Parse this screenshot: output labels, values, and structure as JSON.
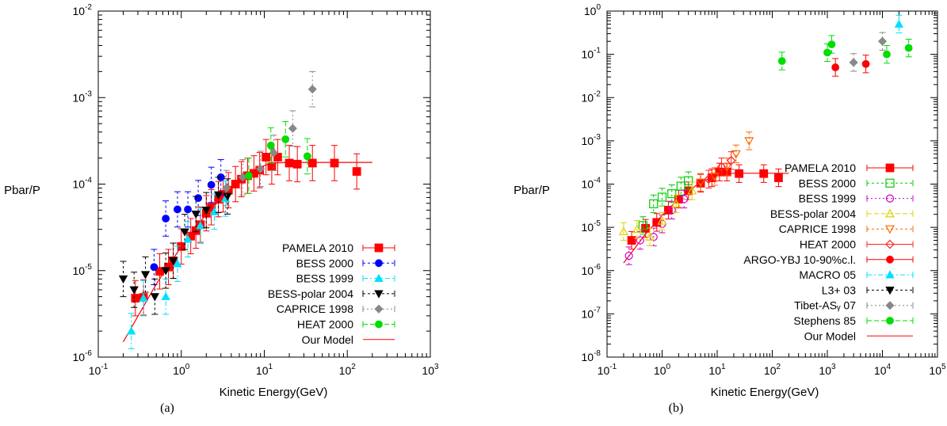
{
  "chart_data": [
    {
      "type": "scatter",
      "panel": "a",
      "caption": "(a)",
      "xlabel": "Kinetic Energy(GeV)",
      "ylabel": "Pbar/P",
      "xscale": "log",
      "yscale": "log",
      "xlim": [
        0.1,
        1000
      ],
      "ylim": [
        1e-06,
        0.01
      ],
      "x_ticks": [
        {
          "v": 0.1,
          "m": "10",
          "e": "-1"
        },
        {
          "v": 1,
          "m": "10",
          "e": "0"
        },
        {
          "v": 10,
          "m": "10",
          "e": "1"
        },
        {
          "v": 100,
          "m": "10",
          "e": "2"
        },
        {
          "v": 1000,
          "m": "10",
          "e": "3"
        }
      ],
      "y_ticks": [
        {
          "v": 1e-06,
          "m": "10",
          "e": "-6"
        },
        {
          "v": 1e-05,
          "m": "10",
          "e": "-5"
        },
        {
          "v": 0.0001,
          "m": "10",
          "e": "-4"
        },
        {
          "v": 0.001,
          "m": "10",
          "e": "-3"
        },
        {
          "v": 0.01,
          "m": "10",
          "e": "-2"
        }
      ],
      "grid": false,
      "legend_position": "bottom-right",
      "series": [
        {
          "name": "PAMELA 2010",
          "color": "#ff0000",
          "marker": "square",
          "dash": "",
          "points": [
            [
              0.28,
              4.8e-06
            ],
            [
              0.35,
              4.9e-06
            ],
            [
              0.55,
              9.8e-06
            ],
            [
              0.7,
              1.1e-05
            ],
            [
              0.8,
              1.3e-05
            ],
            [
              1.0,
              1.9e-05
            ],
            [
              1.3,
              2.5e-05
            ],
            [
              1.5,
              2.9e-05
            ],
            [
              1.7,
              3.4e-05
            ],
            [
              2.0,
              4.6e-05
            ],
            [
              2.3,
              5.4e-05
            ],
            [
              2.8,
              6.7e-05
            ],
            [
              3.2,
              7.6e-05
            ],
            [
              3.7,
              8.5e-05
            ],
            [
              4.5,
              0.0001
            ],
            [
              5.3,
              0.000114
            ],
            [
              6.3,
              0.000125
            ],
            [
              7.5,
              0.000133
            ],
            [
              8.8,
              0.000145
            ],
            [
              10.5,
              0.000205
            ],
            [
              12.3,
              0.00016
            ],
            [
              14.5,
              0.000205
            ],
            [
              20,
              0.000175
            ],
            [
              25,
              0.00017
            ],
            [
              38,
              0.000175
            ],
            [
              70,
              0.000175
            ],
            [
              130,
              0.00014
            ]
          ]
        },
        {
          "name": "BESS 2000",
          "color": "#0000ff",
          "marker": "circle",
          "dash": "3,3",
          "points": [
            [
              0.47,
              1.1e-05
            ],
            [
              0.65,
              4e-05
            ],
            [
              0.9,
              5.1e-05
            ],
            [
              1.2,
              5.1e-05
            ],
            [
              1.6,
              6.9e-05
            ],
            [
              2.3,
              9.8e-05
            ],
            [
              3.0,
              0.00012
            ]
          ]
        },
        {
          "name": "BESS 1999",
          "color": "#00e0ff",
          "marker": "triangle",
          "dash": "6,3,2,3",
          "points": [
            [
              0.25,
              2e-06
            ],
            [
              0.35,
              4.8e-06
            ],
            [
              0.65,
              5e-06
            ],
            [
              0.9,
              1.2e-05
            ],
            [
              1.2,
              2.3e-05
            ],
            [
              1.7,
              3.3e-05
            ],
            [
              2.5,
              4.8e-05
            ],
            [
              3.4,
              6.8e-05
            ]
          ]
        },
        {
          "name": "BESS-polar 2004",
          "color": "#000000",
          "marker": "tridown",
          "dash": "3,3",
          "points": [
            [
              0.2,
              8e-06
            ],
            [
              0.27,
              6e-06
            ],
            [
              0.37,
              9e-06
            ],
            [
              0.48,
              5e-06
            ],
            [
              0.65,
              1e-05
            ],
            [
              0.8,
              1.3e-05
            ],
            [
              1.1,
              2.8e-05
            ],
            [
              1.5,
              4.5e-05
            ],
            [
              2.0,
              5e-05
            ],
            [
              2.8,
              7.5e-05
            ],
            [
              3.6,
              7.2e-05
            ]
          ]
        },
        {
          "name": "CAPRICE 1998",
          "color": "#888888",
          "marker": "diamond",
          "dash": "2,3",
          "points": [
            [
              3.5,
              9e-05
            ],
            [
              5.5,
              0.00012
            ],
            [
              9.0,
              0.00015
            ],
            [
              13,
              0.00023
            ],
            [
              22,
              0.00044
            ],
            [
              38,
              0.00125
            ]
          ]
        },
        {
          "name": "HEAT 2000",
          "color": "#00dd00",
          "marker": "circle",
          "dash": "6,3",
          "points": [
            [
              6.5,
              0.000125
            ],
            [
              12,
              0.00028
            ],
            [
              18,
              0.00033
            ],
            [
              33,
              0.00021
            ]
          ]
        }
      ],
      "model": {
        "name": "Our Model",
        "color": "#ff0000",
        "points": [
          [
            0.2,
            1.5e-06
          ],
          [
            0.5,
            7e-06
          ],
          [
            1,
            1.9e-05
          ],
          [
            2,
            4.5e-05
          ],
          [
            4,
            9e-05
          ],
          [
            8,
            0.00015
          ],
          [
            12,
            0.000175
          ],
          [
            20,
            0.000178
          ],
          [
            200,
            0.000178
          ]
        ]
      }
    },
    {
      "type": "scatter",
      "panel": "b",
      "caption": "(b)",
      "xlabel": "Kinetic Energy(GeV)",
      "ylabel": "Pbar/P",
      "xscale": "log",
      "yscale": "log",
      "xlim": [
        0.1,
        100000
      ],
      "ylim": [
        1e-08,
        1
      ],
      "x_ticks": [
        {
          "v": 0.1,
          "m": "10",
          "e": "-1"
        },
        {
          "v": 1,
          "m": "10",
          "e": "0"
        },
        {
          "v": 10,
          "m": "10",
          "e": "1"
        },
        {
          "v": 100,
          "m": "10",
          "e": "2"
        },
        {
          "v": 1000,
          "m": "10",
          "e": "3"
        },
        {
          "v": 10000,
          "m": "10",
          "e": "4"
        },
        {
          "v": 100000,
          "m": "10",
          "e": "5"
        }
      ],
      "y_ticks": [
        {
          "v": 1e-08,
          "m": "10",
          "e": "-8"
        },
        {
          "v": 1e-07,
          "m": "10",
          "e": "-7"
        },
        {
          "v": 1e-06,
          "m": "10",
          "e": "-6"
        },
        {
          "v": 1e-05,
          "m": "10",
          "e": "-5"
        },
        {
          "v": 0.0001,
          "m": "10",
          "e": "-4"
        },
        {
          "v": 0.001,
          "m": "10",
          "e": "-3"
        },
        {
          "v": 0.01,
          "m": "10",
          "e": "-2"
        },
        {
          "v": 0.1,
          "m": "10",
          "e": "-1"
        },
        {
          "v": 1,
          "m": "10",
          "e": "0"
        }
      ],
      "grid": false,
      "legend_position": "right",
      "series": [
        {
          "name": "PAMELA 2010",
          "color": "#ff0000",
          "marker": "square",
          "dash": "",
          "points": [
            [
              0.28,
              5e-06
            ],
            [
              0.5,
              9.5e-06
            ],
            [
              0.8,
              1.3e-05
            ],
            [
              1.3,
              2.5e-05
            ],
            [
              2,
              4.5e-05
            ],
            [
              3,
              7e-05
            ],
            [
              5,
              0.000105
            ],
            [
              8,
              0.00014
            ],
            [
              11,
              0.00019
            ],
            [
              15,
              0.00019
            ],
            [
              25,
              0.000175
            ],
            [
              70,
              0.000175
            ],
            [
              130,
              0.00014
            ]
          ]
        },
        {
          "name": "BESS 2000",
          "color": "#00cc00",
          "marker": "square-open",
          "dash": "3,3",
          "points": [
            [
              0.45,
              1.1e-05
            ],
            [
              0.7,
              3.5e-05
            ],
            [
              1.0,
              5e-05
            ],
            [
              1.5,
              6e-05
            ],
            [
              2.2,
              9e-05
            ],
            [
              3,
              0.00012
            ]
          ]
        },
        {
          "name": "BESS 1999",
          "color": "#cc00cc",
          "marker": "circle-open",
          "dash": "2,3",
          "points": [
            [
              0.25,
              2.2e-06
            ],
            [
              0.4,
              5e-06
            ],
            [
              0.7,
              6e-06
            ],
            [
              1.0,
              1.2e-05
            ],
            [
              1.5,
              2.5e-05
            ],
            [
              2.5,
              4.5e-05
            ]
          ]
        },
        {
          "name": "BESS-polar 2004",
          "color": "#e0d000",
          "marker": "triangle-open",
          "dash": "6,3",
          "points": [
            [
              0.2,
              8e-06
            ],
            [
              0.35,
              9e-06
            ],
            [
              0.6,
              6e-06
            ],
            [
              1.0,
              1.4e-05
            ],
            [
              1.8,
              3.5e-05
            ],
            [
              3.5,
              7e-05
            ]
          ]
        },
        {
          "name": "CAPRICE 1998",
          "color": "#ff6600",
          "marker": "tridown-open",
          "dash": "3,3",
          "points": [
            [
              5,
              0.00011
            ],
            [
              9,
              0.00015
            ],
            [
              15,
              0.00025
            ],
            [
              22,
              0.0005
            ],
            [
              38,
              0.001
            ]
          ]
        },
        {
          "name": "HEAT 2000",
          "color": "#ff2222",
          "marker": "diamond-open",
          "dash": "",
          "points": [
            [
              7,
              0.00013
            ],
            [
              12,
              0.00025
            ],
            [
              18,
              0.00035
            ]
          ]
        },
        {
          "name": "ARGO-YBJ 10-90%c.l.",
          "color": "#ff0000",
          "marker": "circle",
          "dash": "",
          "points": [
            [
              1400,
              0.05
            ],
            [
              5000,
              0.06
            ]
          ]
        },
        {
          "name": "MACRO 05",
          "color": "#00e0ff",
          "marker": "triangle",
          "dash": "6,3,2,3",
          "points": [
            [
              20000,
              0.5
            ]
          ]
        },
        {
          "name": "L3+ 03",
          "color": "#000000",
          "marker": "tridown",
          "dash": "3,3",
          "points": []
        },
        {
          "name": "Tibet-AS$_\\gamma$ 07",
          "color": "#888888",
          "marker": "diamond",
          "dash": "2,3",
          "points": [
            [
              3000,
              0.065
            ],
            [
              10000,
              0.2
            ]
          ]
        },
        {
          "name": "Stephens 85",
          "color": "#00dd00",
          "marker": "circle",
          "dash": "6,3",
          "points": [
            [
              150,
              0.07
            ],
            [
              1000,
              0.11
            ],
            [
              1200,
              0.17
            ],
            [
              12000,
              0.1
            ],
            [
              30000,
              0.14
            ]
          ]
        }
      ],
      "model": {
        "name": "Our Model",
        "color": "#ff0000",
        "points": [
          [
            0.2,
            1.5e-06
          ],
          [
            0.5,
            7e-06
          ],
          [
            1,
            1.9e-05
          ],
          [
            2,
            4.5e-05
          ],
          [
            4,
            9e-05
          ],
          [
            8,
            0.00015
          ],
          [
            12,
            0.000175
          ],
          [
            20,
            0.000178
          ],
          [
            200,
            0.000178
          ]
        ]
      }
    }
  ]
}
